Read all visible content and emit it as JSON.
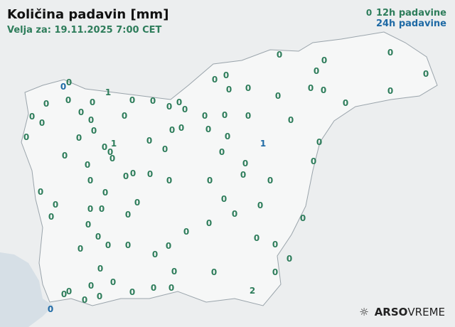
{
  "header": {
    "title": "Količina padavin [mm]",
    "valid": "Velja za: 19.11.2025 7:00 CET"
  },
  "legend": {
    "h12": "12h padavine",
    "h24": "24h padavine"
  },
  "colors": {
    "h12": "#2e7d5b",
    "h24": "#1f6aa5",
    "sea": "#d6dfe6",
    "land": "#f6f7f7"
  },
  "logo": {
    "brand": "ARSO",
    "product": "VREME",
    "icon": "sun-cloud-icon"
  },
  "stations": [
    {
      "v": "0",
      "t": "12h"
    },
    {
      "v": "0",
      "t": "12h"
    },
    {
      "v": "0",
      "t": "12h"
    },
    {
      "v": "0",
      "t": "12h"
    },
    {
      "v": "0",
      "t": "12h"
    },
    {
      "v": "0",
      "t": "24h"
    },
    {
      "v": "1",
      "t": "12h"
    },
    {
      "v": "0",
      "t": "12h"
    },
    {
      "v": "0",
      "t": "12h"
    },
    {
      "v": "0",
      "t": "12h"
    },
    {
      "v": "0",
      "t": "12h"
    },
    {
      "v": "0",
      "t": "12h"
    },
    {
      "v": "0",
      "t": "12h"
    },
    {
      "v": "0",
      "t": "12h"
    },
    {
      "v": "0",
      "t": "12h"
    },
    {
      "v": "0",
      "t": "12h"
    },
    {
      "v": "0",
      "t": "12h"
    },
    {
      "v": "0",
      "t": "12h"
    },
    {
      "v": "0",
      "t": "12h"
    },
    {
      "v": "0",
      "t": "12h"
    },
    {
      "v": "0",
      "t": "12h"
    },
    {
      "v": "0",
      "t": "12h"
    },
    {
      "v": "0",
      "t": "12h"
    },
    {
      "v": "0",
      "t": "12h"
    },
    {
      "v": "0",
      "t": "12h"
    },
    {
      "v": "0",
      "t": "12h"
    },
    {
      "v": "0",
      "t": "12h"
    },
    {
      "v": "0",
      "t": "12h"
    },
    {
      "v": "0",
      "t": "12h"
    },
    {
      "v": "0",
      "t": "12h"
    },
    {
      "v": "0",
      "t": "12h"
    },
    {
      "v": "0",
      "t": "12h"
    },
    {
      "v": "0",
      "t": "12h"
    },
    {
      "v": "0",
      "t": "12h"
    },
    {
      "v": "0",
      "t": "12h"
    },
    {
      "v": "0",
      "t": "12h"
    },
    {
      "v": "0",
      "t": "12h"
    },
    {
      "v": "0",
      "t": "12h"
    },
    {
      "v": "0",
      "t": "12h"
    },
    {
      "v": "0",
      "t": "12h"
    },
    {
      "v": "0",
      "t": "12h"
    },
    {
      "v": "1",
      "t": "12h"
    },
    {
      "v": "0",
      "t": "12h"
    },
    {
      "v": "0",
      "t": "12h"
    },
    {
      "v": "1",
      "t": "24h"
    },
    {
      "v": "0",
      "t": "12h"
    },
    {
      "v": "0",
      "t": "12h"
    },
    {
      "v": "0",
      "t": "12h"
    },
    {
      "v": "0",
      "t": "12h"
    },
    {
      "v": "0",
      "t": "12h"
    },
    {
      "v": "0",
      "t": "12h"
    },
    {
      "v": "0",
      "t": "12h"
    },
    {
      "v": "0",
      "t": "12h"
    },
    {
      "v": "0",
      "t": "12h"
    },
    {
      "v": "0",
      "t": "12h"
    },
    {
      "v": "0",
      "t": "12h"
    },
    {
      "v": "0",
      "t": "12h"
    },
    {
      "v": "0",
      "t": "12h"
    },
    {
      "v": "0",
      "t": "12h"
    },
    {
      "v": "0",
      "t": "12h"
    },
    {
      "v": "0",
      "t": "12h"
    },
    {
      "v": "0",
      "t": "12h"
    },
    {
      "v": "0",
      "t": "12h"
    },
    {
      "v": "0",
      "t": "12h"
    },
    {
      "v": "0",
      "t": "12h"
    },
    {
      "v": "0",
      "t": "12h"
    },
    {
      "v": "0",
      "t": "12h"
    },
    {
      "v": "0",
      "t": "12h"
    },
    {
      "v": "0",
      "t": "12h"
    },
    {
      "v": "0",
      "t": "12h"
    },
    {
      "v": "0",
      "t": "12h"
    },
    {
      "v": "0",
      "t": "12h"
    },
    {
      "v": "0",
      "t": "12h"
    },
    {
      "v": "0",
      "t": "12h"
    },
    {
      "v": "0",
      "t": "12h"
    },
    {
      "v": "0",
      "t": "12h"
    },
    {
      "v": "0",
      "t": "12h"
    },
    {
      "v": "0",
      "t": "12h"
    },
    {
      "v": "0",
      "t": "12h"
    },
    {
      "v": "0",
      "t": "12h"
    },
    {
      "v": "0",
      "t": "12h"
    },
    {
      "v": "0",
      "t": "12h"
    },
    {
      "v": "0",
      "t": "12h"
    },
    {
      "v": "0",
      "t": "12h"
    },
    {
      "v": "0",
      "t": "12h"
    },
    {
      "v": "0",
      "t": "12h"
    },
    {
      "v": "0",
      "t": "12h"
    },
    {
      "v": "0",
      "t": "12h"
    },
    {
      "v": "0",
      "t": "12h"
    },
    {
      "v": "0",
      "t": "12h"
    },
    {
      "v": "0",
      "t": "12h"
    },
    {
      "v": "0",
      "t": "12h"
    },
    {
      "v": "0",
      "t": "12h"
    },
    {
      "v": "0",
      "t": "12h"
    },
    {
      "v": "0",
      "t": "12h"
    },
    {
      "v": "0",
      "t": "12h"
    },
    {
      "v": "0",
      "t": "12h"
    },
    {
      "v": "0",
      "t": "12h"
    },
    {
      "v": "0",
      "t": "12h"
    },
    {
      "v": "0",
      "t": "12h"
    },
    {
      "v": "2",
      "t": "12h"
    },
    {
      "v": "0",
      "t": "24h"
    }
  ]
}
